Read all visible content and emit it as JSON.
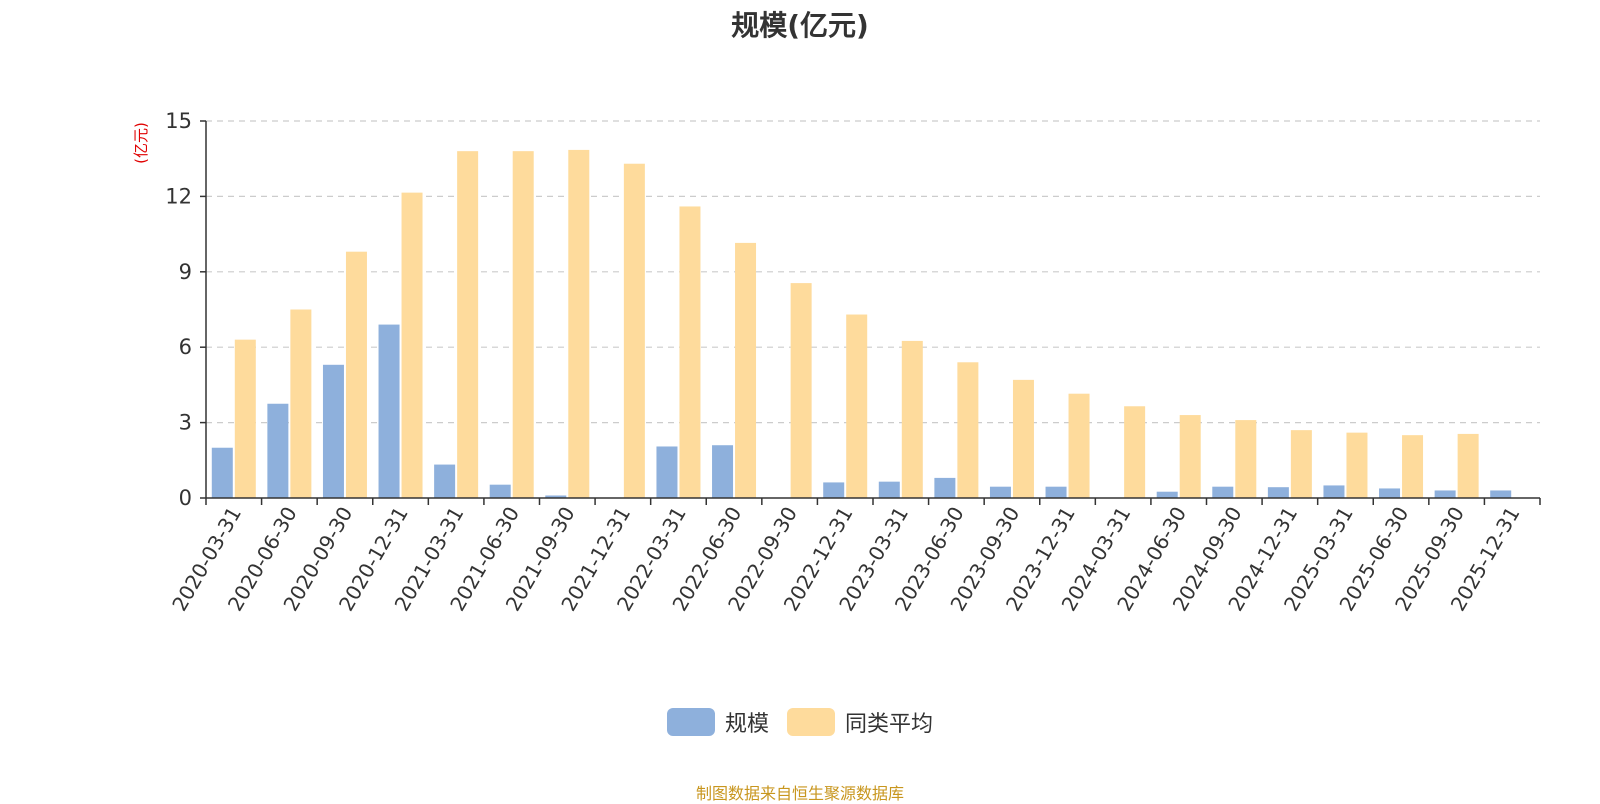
{
  "chart_data": {
    "type": "bar",
    "title": "规模(亿元)",
    "ylabel": "(亿元)",
    "xlabel": "",
    "ylim": [
      0,
      15
    ],
    "yticks": [
      0,
      3,
      6,
      9,
      12,
      15
    ],
    "grid": true,
    "legend_position": "bottom",
    "categories": [
      "2020-03-31",
      "2020-06-30",
      "2020-09-30",
      "2020-12-31",
      "2021-03-31",
      "2021-06-30",
      "2021-09-30",
      "2021-12-31",
      "2022-03-31",
      "2022-06-30",
      "2022-09-30",
      "2022-12-31",
      "2023-03-31",
      "2023-06-30",
      "2023-09-30",
      "2023-12-31",
      "2024-03-31",
      "2024-06-30",
      "2024-09-30",
      "2024-12-31",
      "2025-03-31",
      "2025-06-30",
      "2025-09-30",
      "2025-12-31"
    ],
    "series": [
      {
        "name": "规模",
        "color": "#8eb0dc",
        "values": [
          2.0,
          3.75,
          5.3,
          6.9,
          1.33,
          0.53,
          0.1,
          0,
          2.05,
          2.1,
          0,
          0.62,
          0.65,
          0.8,
          0.45,
          0.45,
          0,
          0.25,
          0.45,
          0.43,
          0.5,
          0.38,
          0.3,
          0.3
        ]
      },
      {
        "name": "同类平均",
        "color": "#fedb9c",
        "values": [
          6.3,
          7.5,
          9.8,
          12.15,
          13.8,
          13.8,
          13.85,
          13.3,
          11.6,
          10.15,
          8.55,
          7.3,
          6.25,
          5.4,
          4.7,
          4.15,
          3.65,
          3.3,
          3.1,
          2.7,
          2.6,
          2.5,
          2.55,
          null
        ]
      }
    ]
  },
  "source_note": "制图数据来自恒生聚源数据库"
}
